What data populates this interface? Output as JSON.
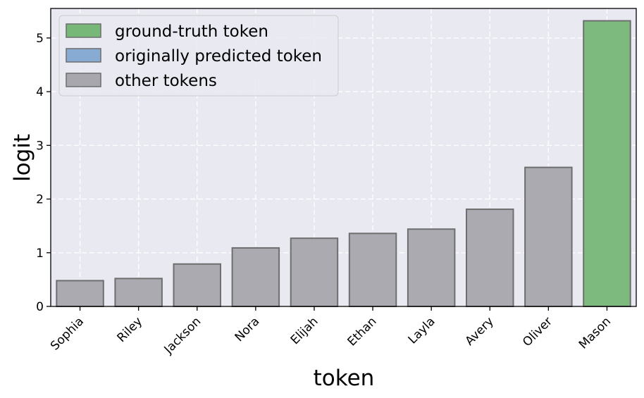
{
  "chart_data": {
    "type": "bar",
    "xlabel": "token",
    "ylabel": "logit",
    "ylim": [
      0,
      5.55
    ],
    "yticks": [
      0,
      1,
      2,
      3,
      4,
      5
    ],
    "grid": true,
    "legend_position": "top-left",
    "categories": [
      "Sophia",
      "Riley",
      "Jackson",
      "Nora",
      "Elijah",
      "Ethan",
      "Layla",
      "Avery",
      "Oliver",
      "Mason"
    ],
    "values": [
      0.48,
      0.52,
      0.79,
      1.09,
      1.27,
      1.36,
      1.44,
      1.81,
      2.59,
      5.32
    ],
    "bar_roles": [
      "other",
      "other",
      "other",
      "other",
      "other",
      "other",
      "other",
      "other",
      "other",
      "ground_truth"
    ],
    "legend": [
      {
        "label": "ground-truth token",
        "role": "ground_truth"
      },
      {
        "label": "originally predicted token",
        "role": "predicted"
      },
      {
        "label": "other tokens",
        "role": "other"
      }
    ],
    "colors": {
      "ground_truth": "#77b777",
      "predicted": "#87abd2",
      "other": "#a8a7ad",
      "plot_background": "#e9e9f2",
      "grid": "#ffffff",
      "bar_edge": "#6e6e6e"
    }
  }
}
